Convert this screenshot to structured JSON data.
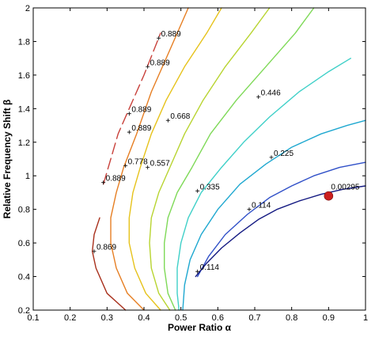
{
  "chart_data": {
    "type": "line",
    "subtype": "contour",
    "title": "",
    "xlabel": "Power Ratio α",
    "ylabel": "Relative Frequency Shift β",
    "xlim": [
      0.1,
      1.0
    ],
    "ylim": [
      0.2,
      2.0
    ],
    "xticks": [
      "0.1",
      "0.2",
      "0.3",
      "0.4",
      "0.5",
      "0.6",
      "0.7",
      "0.8",
      "0.9",
      "1"
    ],
    "yticks": [
      "0.2",
      "0.4",
      "0.6",
      "0.8",
      "1",
      "1.2",
      "1.4",
      "1.6",
      "1.8",
      "2"
    ],
    "grid": false,
    "series": [
      {
        "color": "#a8301c",
        "dashed": false,
        "x": [
          0.35,
          0.3,
          0.27,
          0.26,
          0.265,
          0.28
        ],
        "y": [
          0.2,
          0.3,
          0.45,
          0.55,
          0.65,
          0.75
        ]
      },
      {
        "color": "#c8403a",
        "dashed": true,
        "x": [
          0.29,
          0.31,
          0.33,
          0.36,
          0.4,
          0.445
        ],
        "y": [
          0.95,
          1.1,
          1.25,
          1.4,
          1.6,
          1.85
        ]
      },
      {
        "color": "#e67e22",
        "dashed": false,
        "x": [
          0.4,
          0.355,
          0.325,
          0.31,
          0.31,
          0.325,
          0.345,
          0.38,
          0.42,
          0.47,
          0.52
        ],
        "y": [
          0.2,
          0.3,
          0.45,
          0.6,
          0.75,
          0.9,
          1.05,
          1.25,
          1.5,
          1.75,
          2.0
        ]
      },
      {
        "color": "#e6c21a",
        "dashed": false,
        "x": [
          0.445,
          0.405,
          0.375,
          0.36,
          0.36,
          0.37,
          0.39,
          0.42,
          0.46,
          0.51,
          0.57,
          0.61
        ],
        "y": [
          0.2,
          0.3,
          0.45,
          0.6,
          0.75,
          0.9,
          1.05,
          1.25,
          1.45,
          1.65,
          1.85,
          2.0
        ]
      },
      {
        "color": "#b8d430",
        "dashed": false,
        "x": [
          0.47,
          0.44,
          0.42,
          0.415,
          0.42,
          0.44,
          0.47,
          0.51,
          0.56,
          0.62,
          0.69,
          0.74
        ],
        "y": [
          0.2,
          0.3,
          0.45,
          0.6,
          0.75,
          0.9,
          1.05,
          1.25,
          1.45,
          1.65,
          1.85,
          2.0
        ]
      },
      {
        "color": "#7ed957",
        "dashed": false,
        "x": [
          0.485,
          0.465,
          0.455,
          0.455,
          0.465,
          0.49,
          0.53,
          0.58,
          0.65,
          0.73,
          0.81,
          0.86
        ],
        "y": [
          0.2,
          0.3,
          0.45,
          0.6,
          0.75,
          0.9,
          1.05,
          1.25,
          1.45,
          1.65,
          1.85,
          2.0
        ]
      },
      {
        "color": "#3fd0c8",
        "dashed": false,
        "x": [
          0.495,
          0.49,
          0.49,
          0.5,
          0.52,
          0.555,
          0.61,
          0.67,
          0.74,
          0.82,
          0.9,
          0.96
        ],
        "y": [
          0.2,
          0.3,
          0.45,
          0.6,
          0.75,
          0.9,
          1.05,
          1.2,
          1.35,
          1.5,
          1.62,
          1.7
        ]
      },
      {
        "color": "#1fa8d0",
        "dashed": false,
        "x": [
          0.505,
          0.51,
          0.525,
          0.555,
          0.6,
          0.66,
          0.73,
          0.8,
          0.88,
          0.95,
          1.0
        ],
        "y": [
          0.2,
          0.35,
          0.5,
          0.65,
          0.8,
          0.95,
          1.07,
          1.17,
          1.25,
          1.3,
          1.33
        ]
      },
      {
        "color": "#3050c8",
        "dashed": false,
        "x": [
          0.545,
          0.575,
          0.62,
          0.68,
          0.74,
          0.8,
          0.86,
          0.93,
          1.0
        ],
        "y": [
          0.4,
          0.52,
          0.65,
          0.77,
          0.87,
          0.94,
          1.0,
          1.05,
          1.08
        ]
      },
      {
        "color": "#141a82",
        "dashed": false,
        "x": [
          0.54,
          0.57,
          0.61,
          0.66,
          0.71,
          0.76,
          0.82,
          0.88,
          0.94,
          1.0
        ],
        "y": [
          0.4,
          0.48,
          0.57,
          0.66,
          0.74,
          0.8,
          0.85,
          0.89,
          0.92,
          0.94
        ]
      }
    ],
    "contour_labels": [
      {
        "text": "0.889",
        "x": 0.44,
        "y": 1.82
      },
      {
        "text": "0.889",
        "x": 0.41,
        "y": 1.65
      },
      {
        "text": "0.889",
        "x": 0.36,
        "y": 1.37
      },
      {
        "text": "0.889",
        "x": 0.36,
        "y": 1.26
      },
      {
        "text": "0.889",
        "x": 0.29,
        "y": 0.96
      },
      {
        "text": "0.869",
        "x": 0.265,
        "y": 0.55
      },
      {
        "text": "0.778",
        "x": 0.35,
        "y": 1.06
      },
      {
        "text": "0.668",
        "x": 0.465,
        "y": 1.33
      },
      {
        "text": "0.557",
        "x": 0.41,
        "y": 1.05
      },
      {
        "text": "0.446",
        "x": 0.71,
        "y": 1.47
      },
      {
        "text": "0.335",
        "x": 0.545,
        "y": 0.91
      },
      {
        "text": "0.225",
        "x": 0.745,
        "y": 1.11
      },
      {
        "text": "0.114",
        "x": 0.685,
        "y": 0.8
      },
      {
        "text": "0.114",
        "x": 0.545,
        "y": 0.43
      }
    ],
    "points": [
      {
        "label": "0.00295",
        "x": 0.9,
        "y": 0.88,
        "color": "#cc1f1f"
      }
    ]
  }
}
